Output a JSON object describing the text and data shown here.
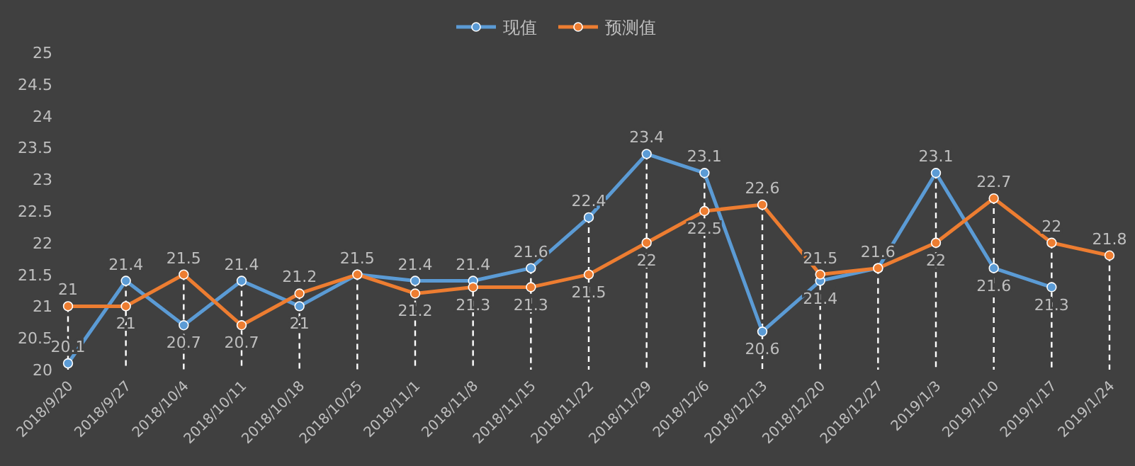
{
  "chart_data": {
    "type": "line",
    "categories": [
      "2018/9/20",
      "2018/9/27",
      "2018/10/4",
      "2018/10/11",
      "2018/10/18",
      "2018/10/25",
      "2018/11/1",
      "2018/11/8",
      "2018/11/15",
      "2018/11/22",
      "2018/11/29",
      "2018/12/6",
      "2018/12/13",
      "2018/12/20",
      "2018/12/27",
      "2019/1/3",
      "2019/1/10",
      "2019/1/17",
      "2019/1/24"
    ],
    "series": [
      {
        "name": "现值",
        "color": "#5b9bd5",
        "values": [
          20.1,
          21.4,
          20.7,
          21.4,
          21,
          21.5,
          21.4,
          21.4,
          21.6,
          22.4,
          23.4,
          23.1,
          20.6,
          21.4,
          21.6,
          23.1,
          21.6,
          21.3,
          null
        ],
        "value_labels": [
          "20.1",
          "21.4",
          "20.7",
          "21.4",
          "21",
          "21.5",
          "21.4",
          "21.4",
          "21.6",
          "22.4",
          "23.4",
          "23.1",
          "20.6",
          "21.4",
          "21.6",
          "23.1",
          "21.6",
          "21.3",
          null
        ]
      },
      {
        "name": "预测值",
        "color": "#ed7d31",
        "values": [
          21,
          21,
          21.5,
          20.7,
          21.2,
          21.5,
          21.2,
          21.3,
          21.3,
          21.5,
          22,
          22.5,
          22.6,
          21.5,
          21.6,
          22,
          22.7,
          22,
          21.8
        ],
        "value_labels": [
          "21",
          "21",
          "21.5",
          "20.7",
          "21.2",
          null,
          "21.2",
          "21.3",
          "21.3",
          "21.5",
          "22",
          "22.5",
          "22.6",
          "21.5",
          null,
          "22",
          "22.7",
          "22",
          "21.8"
        ]
      }
    ],
    "ylim": [
      20,
      25
    ],
    "yticks": [
      20,
      20.5,
      21,
      21.5,
      22,
      22.5,
      23,
      23.5,
      24,
      24.5,
      25
    ],
    "legend": "top",
    "marker": "circle"
  }
}
